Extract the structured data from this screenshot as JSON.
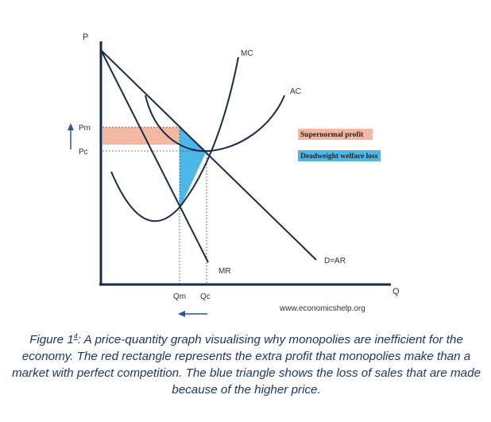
{
  "diagram": {
    "axes": {
      "y": "P",
      "x": "Q"
    },
    "price_labels": {
      "pm": "Pm",
      "pc": "Pc"
    },
    "quantity_labels": {
      "qm": "Qm",
      "qc": "Qc"
    },
    "curves": {
      "mc": "MC",
      "ac": "AC",
      "demand": "D=AR",
      "mr": "MR"
    },
    "legend": [
      {
        "label": "Supernormal profit",
        "color": "#f2b8a2"
      },
      {
        "label": "Deadweight welfare loss",
        "color": "#4db8e8"
      }
    ],
    "source": "www.economicshelp.org",
    "arrows": [
      "up-arrow",
      "left-arrow"
    ]
  },
  "caption": {
    "prefix": "Figure 1",
    "ref": "4",
    "text": ": A price-quantity graph visualising why monopolies are inefficient for the economy. The red rectangle represents the extra profit that monopolies make than a market with perfect competition. The blue triangle shows the loss of sales that are made because of the higher price."
  }
}
